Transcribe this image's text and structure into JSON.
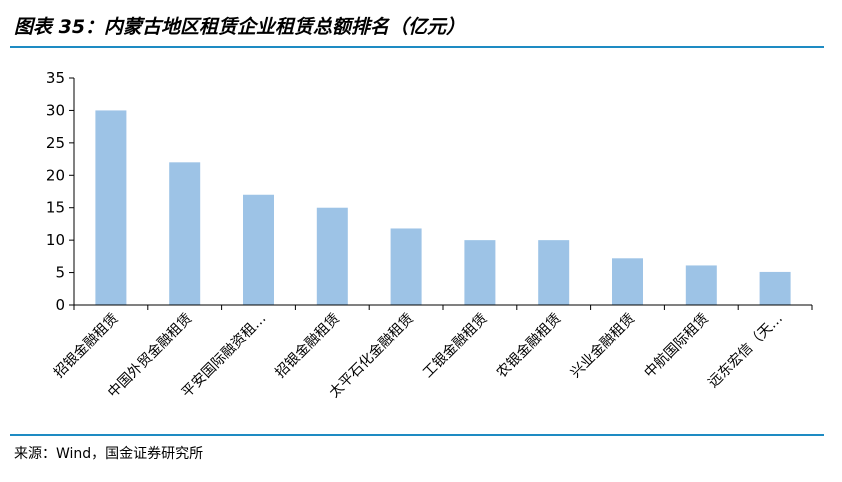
{
  "header": {
    "title": "图表 35：内蒙古地区租赁企业租赁总额排名（亿元）"
  },
  "footer": {
    "source": "来源：Wind，国金证券研究所"
  },
  "colors": {
    "bar": "#9DC3E6",
    "axis": "#000000",
    "rule": "#1E8BC3"
  },
  "chart_data": {
    "type": "bar",
    "title": "",
    "xlabel": "",
    "ylabel": "",
    "ylim": [
      0,
      35
    ],
    "yticks": [
      0,
      5,
      10,
      15,
      20,
      25,
      30,
      35
    ],
    "grid": false,
    "categories": [
      "招银金融租赁",
      "中国外贸金融租赁",
      "平安国际融资租…",
      "招银金融租赁",
      "太平石化金融租赁",
      "工银金融租赁",
      "农银金融租赁",
      "兴业金融租赁",
      "中航国际租赁",
      "远东宏信（天…"
    ],
    "values": [
      30,
      22,
      17,
      15,
      11.8,
      10,
      10,
      7.2,
      6.1,
      5.1
    ]
  }
}
